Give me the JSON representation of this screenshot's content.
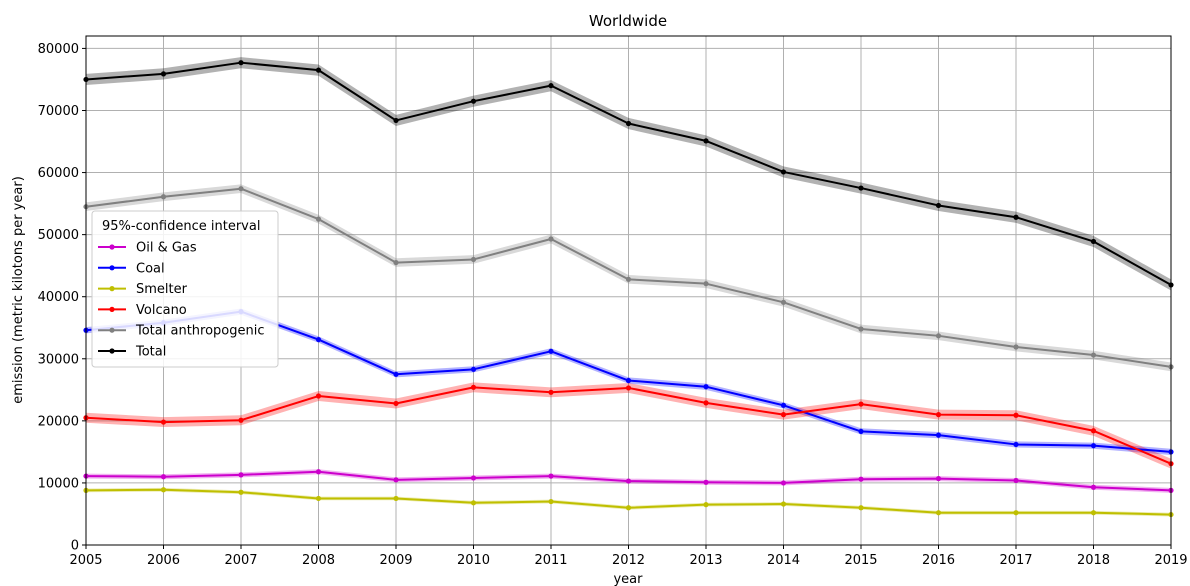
{
  "chart_data": {
    "type": "line",
    "title": "Worldwide",
    "xlabel": "year",
    "ylabel": "emission (metric kilotons per year)",
    "xlim": [
      2005,
      2019
    ],
    "ylim": [
      0,
      82000
    ],
    "x_ticks": [
      "2005",
      "2006",
      "2007",
      "2008",
      "2009",
      "2010",
      "2011",
      "2012",
      "2013",
      "2014",
      "2015",
      "2016",
      "2017",
      "2018",
      "2019"
    ],
    "y_ticks": [
      "0",
      "10000",
      "20000",
      "30000",
      "40000",
      "50000",
      "60000",
      "70000",
      "80000"
    ],
    "grid": true,
    "legend": {
      "title": "95%-confidence interval",
      "placement": "center-left"
    },
    "x": [
      2005,
      2006,
      2007,
      2008,
      2009,
      2010,
      2011,
      2012,
      2013,
      2014,
      2015,
      2016,
      2017,
      2018,
      2019
    ],
    "series": [
      {
        "name": "Oil & Gas",
        "color": "#cc00cc",
        "values": [
          11100,
          11000,
          11300,
          11800,
          10500,
          10800,
          11100,
          10300,
          10100,
          10000,
          10600,
          10700,
          10400,
          9300,
          8800
        ],
        "ci": 400
      },
      {
        "name": "Coal",
        "color": "#0000ff",
        "values": [
          34600,
          35800,
          37600,
          33100,
          27500,
          28300,
          31200,
          26500,
          25500,
          22500,
          18300,
          17700,
          16200,
          16000,
          15000
        ],
        "ci": 500
      },
      {
        "name": "Smelter",
        "color": "#bfbf00",
        "values": [
          8800,
          8900,
          8500,
          7500,
          7500,
          6800,
          7000,
          6000,
          6500,
          6600,
          6000,
          5200,
          5200,
          5200,
          4900
        ],
        "ci": 300
      },
      {
        "name": "Volcano",
        "color": "#ff0000",
        "values": [
          20500,
          19800,
          20100,
          24000,
          22800,
          25400,
          24600,
          25300,
          22900,
          21000,
          22700,
          21000,
          20900,
          18400,
          13100
        ],
        "ci": 800
      },
      {
        "name": "Total anthropogenic",
        "color": "#808080",
        "values": [
          54500,
          56100,
          57400,
          52500,
          45500,
          46000,
          49300,
          42800,
          42100,
          39100,
          34800,
          33700,
          31900,
          30600,
          28700
        ],
        "ci": 700
      },
      {
        "name": "Total",
        "color": "#000000",
        "values": [
          75000,
          75900,
          77700,
          76500,
          68400,
          71500,
          74000,
          67900,
          65100,
          60100,
          57500,
          54700,
          52800,
          48900,
          41900
        ],
        "ci": 900
      }
    ]
  }
}
